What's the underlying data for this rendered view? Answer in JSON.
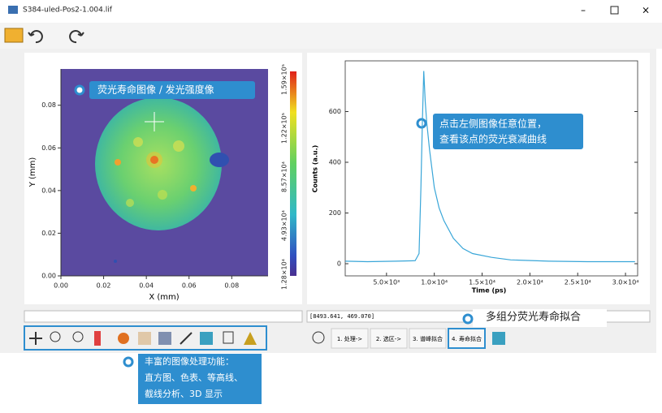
{
  "window": {
    "title": "S384-uled-Pos2-1.004.lif"
  },
  "image_panel": {
    "x_label": "X (mm)",
    "y_label": "Y (mm)",
    "xlim": [
      0,
      0.097
    ],
    "ylim": [
      0,
      0.097
    ],
    "xticks": [
      {
        "value": 0,
        "label": "0.00"
      },
      {
        "value": 0.02,
        "label": "0.02"
      },
      {
        "value": 0.04,
        "label": "0.04"
      },
      {
        "value": 0.06,
        "label": "0.06"
      },
      {
        "value": 0.08,
        "label": "0.08"
      }
    ],
    "yticks": [
      {
        "value": 0,
        "label": "0.00"
      },
      {
        "value": 0.02,
        "label": "0.02"
      },
      {
        "value": 0.04,
        "label": "0.04"
      },
      {
        "value": 0.06,
        "label": "0.06"
      },
      {
        "value": 0.08,
        "label": "0.08"
      }
    ],
    "colorbar_ticks": [
      "1.59×10⁵",
      "1.22×10⁵",
      "8.57×10⁴",
      "4.93×10⁴",
      "1.28×10⁴"
    ]
  },
  "decay_panel": {
    "type": "line",
    "x_label": "Time (ps)",
    "y_label": "Counts (a.u.)",
    "xlim": [
      680,
      31270
    ],
    "ylim": [
      -48,
      800
    ],
    "xticks": [
      {
        "value": 5000,
        "label": "5.0×10³"
      },
      {
        "value": 10000,
        "label": "1.0×10⁴"
      },
      {
        "value": 15000,
        "label": "1.5×10⁴"
      },
      {
        "value": 20000,
        "label": "2.0×10⁴"
      },
      {
        "value": 25000,
        "label": "2.5×10⁴"
      },
      {
        "value": 30000,
        "label": "3.0×10⁴"
      }
    ],
    "yticks": [
      0,
      200,
      400,
      600
    ],
    "series": [
      {
        "color": "#39a6d8",
        "x": [
          700,
          3000,
          6000,
          8000,
          8400,
          8600,
          8750,
          8900,
          9050,
          9200,
          9500,
          10000,
          10500,
          11000,
          12000,
          13000,
          14000,
          16000,
          18000,
          22000,
          26000,
          31000
        ],
        "values": [
          10,
          8,
          10,
          12,
          40,
          300,
          560,
          760,
          640,
          560,
          450,
          300,
          220,
          170,
          100,
          60,
          40,
          25,
          15,
          10,
          8,
          8
        ]
      }
    ]
  },
  "status": {
    "cursor": "[8493.641, 469.070]"
  },
  "workflow_buttons": [
    "1. 处理->",
    "2. 选区->",
    "3. 谱峰拟合",
    "4. 寿命拟合"
  ],
  "annotations": {
    "image": "荧光寿命图像 / 发光强度像",
    "curve": [
      "点击左侧图像任意位置，",
      "查看该点的荧光衰减曲线"
    ],
    "fitting": "多组分荧光寿命拟合",
    "tools": [
      "丰富的图像处理功能：",
      "直方图、色表、等高线、",
      "截线分析、3D 显示"
    ]
  }
}
